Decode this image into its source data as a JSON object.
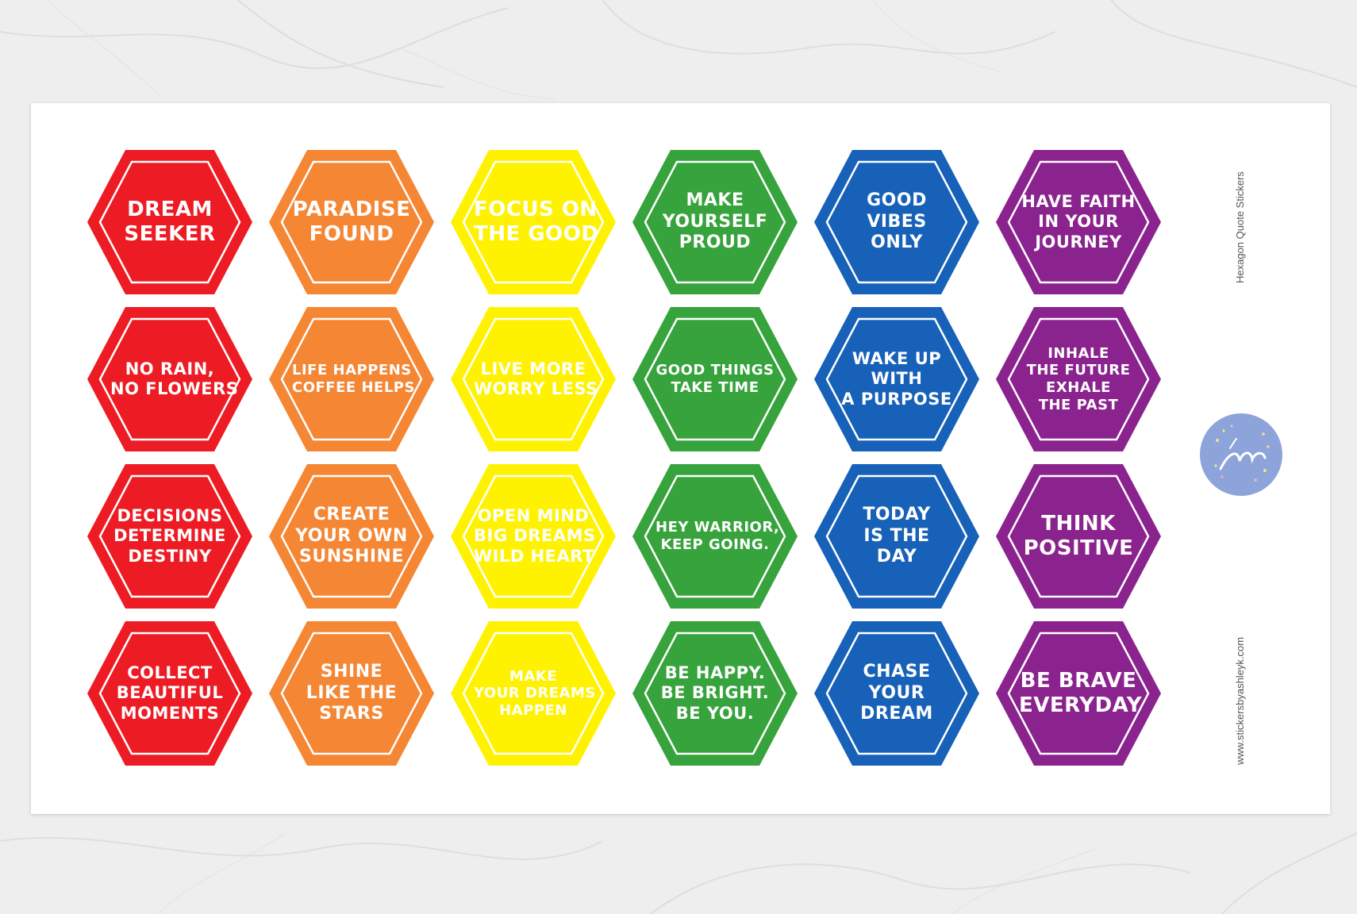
{
  "sheet_title": "Hexagon Quote Stickers",
  "website": "www.stickersbyashleyk.com",
  "logo_text": "by AshleyK",
  "colors": {
    "red": "#ed1c24",
    "orange": "#f58634",
    "yellow": "#fff200",
    "green": "#37a33c",
    "blue": "#1761b8",
    "purple": "#8a238e",
    "logo": "#8da4da"
  },
  "stickers": [
    {
      "id": "dream-seeker",
      "color": "red",
      "lines": [
        "DREAM",
        "SEEKER"
      ]
    },
    {
      "id": "paradise-found",
      "color": "orange",
      "lines": [
        "PARADISE",
        "FOUND"
      ]
    },
    {
      "id": "focus-on-the-good",
      "color": "yellow",
      "lines": [
        "FOCUS ON",
        "THE GOOD"
      ]
    },
    {
      "id": "make-yourself-proud",
      "color": "green",
      "lines": [
        "MAKE",
        "YOURSELF",
        "PROUD"
      ]
    },
    {
      "id": "good-vibes-only",
      "color": "blue",
      "lines": [
        "GOOD",
        "VIBES",
        "ONLY"
      ]
    },
    {
      "id": "have-faith-in-your-journey",
      "color": "purple",
      "lines": [
        "HAVE FAITH",
        "IN YOUR",
        "JOURNEY"
      ]
    },
    {
      "id": "no-rain-no-flowers",
      "color": "red",
      "lines": [
        "NO RAIN,",
        "NO FLOWERS"
      ]
    },
    {
      "id": "life-happens-coffee-helps",
      "color": "orange",
      "lines": [
        "LIFE HAPPENS",
        "COFFEE HELPS"
      ]
    },
    {
      "id": "live-more-worry-less",
      "color": "yellow",
      "lines": [
        "LIVE MORE",
        "WORRY LESS"
      ]
    },
    {
      "id": "good-things-take-time",
      "color": "green",
      "lines": [
        "GOOD THINGS",
        "TAKE TIME"
      ]
    },
    {
      "id": "wake-up-with-a-purpose",
      "color": "blue",
      "lines": [
        "WAKE UP",
        "WITH",
        "A PURPOSE"
      ]
    },
    {
      "id": "inhale-the-future-exhale-the-past",
      "color": "purple",
      "lines": [
        "INHALE",
        "THE FUTURE",
        "EXHALE",
        "THE PAST"
      ]
    },
    {
      "id": "decisions-determine-destiny",
      "color": "red",
      "lines": [
        "DECISIONS",
        "DETERMINE",
        "DESTINY"
      ]
    },
    {
      "id": "create-your-own-sunshine",
      "color": "orange",
      "lines": [
        "CREATE",
        "YOUR OWN",
        "SUNSHINE"
      ]
    },
    {
      "id": "open-mind-big-dreams-wild-heart",
      "color": "yellow",
      "lines": [
        "OPEN MIND",
        "BIG DREAMS",
        "WILD HEART"
      ]
    },
    {
      "id": "hey-warrior-keep-going",
      "color": "green",
      "lines": [
        "HEY WARRIOR,",
        "KEEP GOING."
      ]
    },
    {
      "id": "today-is-the-day",
      "color": "blue",
      "lines": [
        "TODAY",
        "IS THE",
        "DAY"
      ]
    },
    {
      "id": "think-positive",
      "color": "purple",
      "lines": [
        "THINK",
        "POSITIVE"
      ]
    },
    {
      "id": "collect-beautiful-moments",
      "color": "red",
      "lines": [
        "COLLECT",
        "BEAUTIFUL",
        "MOMENTS"
      ]
    },
    {
      "id": "shine-like-the-stars",
      "color": "orange",
      "lines": [
        "SHINE",
        "LIKE THE",
        "STARS"
      ]
    },
    {
      "id": "make-your-dreams-happen",
      "color": "yellow",
      "lines": [
        "MAKE",
        "YOUR DREAMS",
        "HAPPEN"
      ]
    },
    {
      "id": "be-happy-be-bright-be-you",
      "color": "green",
      "lines": [
        "BE HAPPY.",
        "BE BRIGHT.",
        "BE YOU."
      ]
    },
    {
      "id": "chase-your-dream",
      "color": "blue",
      "lines": [
        "CHASE",
        "YOUR",
        "DREAM"
      ]
    },
    {
      "id": "be-brave-everyday",
      "color": "purple",
      "lines": [
        "BE BRAVE",
        "EVERYDAY"
      ]
    }
  ]
}
